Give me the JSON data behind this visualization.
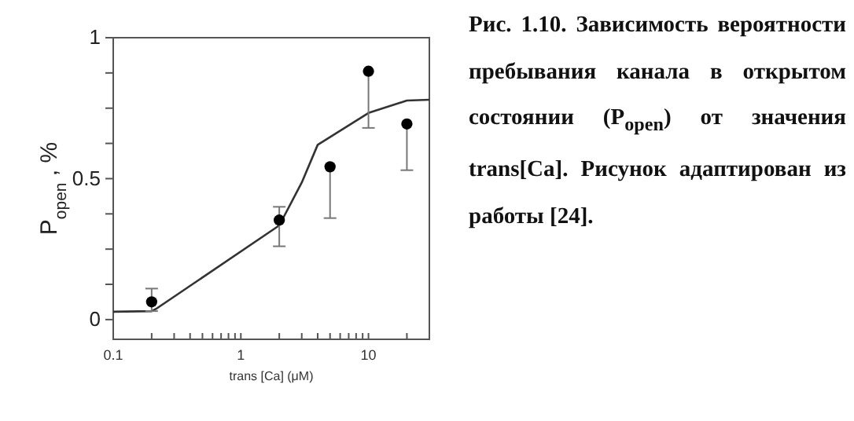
{
  "chart_data": {
    "type": "scatter",
    "xlabel": "trans [Ca] (μM)",
    "ylabel": "P$_{open}$ , %",
    "log": "x",
    "xlim": [
      0.1,
      30
    ],
    "ylim": [
      -0.07,
      1
    ],
    "xticks": [
      0.1,
      {
        "value": 0.2,
        "label": null
      },
      {
        "value": 0.3,
        "label": null
      },
      {
        "value": 0.4,
        "label": null
      },
      {
        "value": 0.5,
        "label": null
      },
      {
        "value": 0.6,
        "label": null
      },
      {
        "value": 0.7,
        "label": null
      },
      {
        "value": 0.8,
        "label": null
      },
      {
        "value": 0.9,
        "label": null
      },
      1,
      {
        "value": 2,
        "label": null
      },
      {
        "value": 3,
        "label": null
      },
      {
        "value": 4,
        "label": null
      },
      {
        "value": 5,
        "label": null
      },
      {
        "value": 6,
        "label": null
      },
      {
        "value": 7,
        "label": null
      },
      {
        "value": 8,
        "label": null
      },
      {
        "value": 9,
        "label": null
      },
      10,
      {
        "value": 20,
        "label": null
      },
      {
        "value": 30,
        "label": null
      }
    ],
    "yticks": [
      0,
      {
        "value": 0.125,
        "label": null
      },
      {
        "value": 0.25,
        "label": null
      },
      {
        "value": 0.375,
        "label": null
      },
      0.5,
      {
        "value": 0.625,
        "label": null
      },
      {
        "value": 0.75,
        "label": null
      },
      {
        "value": 0.875,
        "label": null
      },
      1
    ],
    "grid": false,
    "series": [
      {
        "marker": "circle",
        "color": "#000000",
        "x": [
          0.2,
          2,
          5,
          10,
          20
        ],
        "values": [
          0.063,
          0.353,
          0.542,
          0.881,
          0.694
        ],
        "errors": [
          [
            0.03,
            0.11
          ],
          [
            0.26,
            0.4
          ],
          [
            0.36,
            0.542
          ],
          [
            0.68,
            0.881
          ],
          [
            0.53,
            0.694
          ]
        ]
      },
      {
        "type": "line",
        "color": "#333333",
        "line_style": "solid",
        "x": [
          0.1,
          0.2,
          0.22,
          2,
          3,
          4,
          10,
          20,
          30
        ],
        "values": [
          0.028,
          0.03,
          0.04,
          0.334,
          0.486,
          0.62,
          0.733,
          0.777,
          0.78
        ]
      }
    ],
    "annotations": [
      "Рис. 1.10. Зависимость вероятности пребывания канала в открытом состоянии (P$_{open}$) от значения trans[Ca]. Рисунок адаптирован из работы [24]."
    ]
  }
}
